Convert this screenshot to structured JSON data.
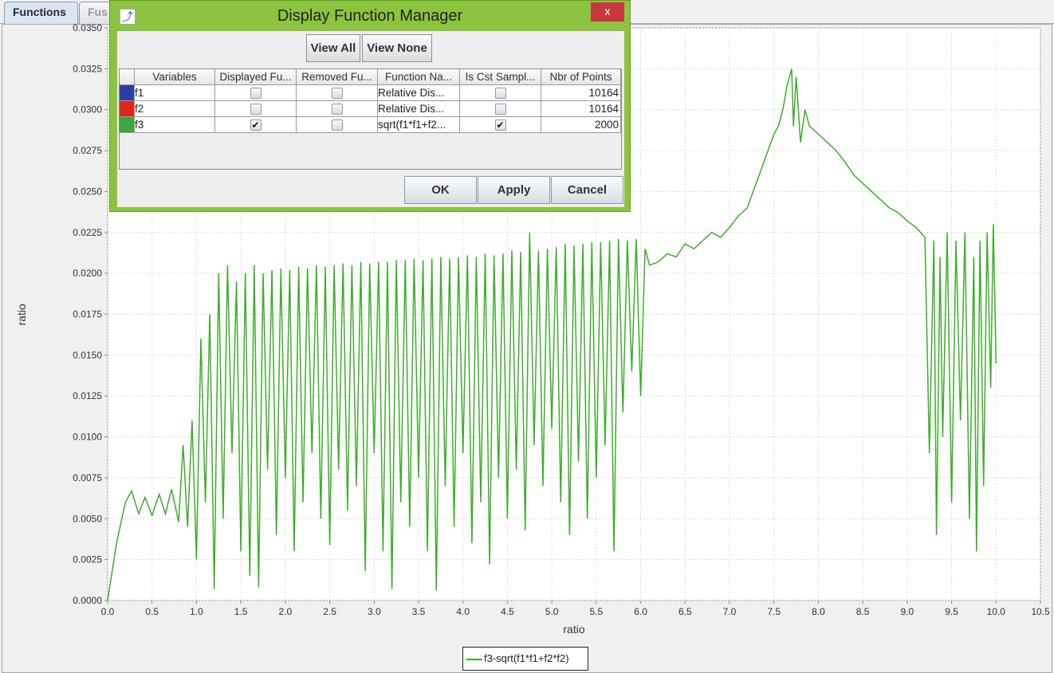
{
  "tabs": [
    {
      "label": "Functions",
      "active": true
    },
    {
      "label": "Fus",
      "active": false
    }
  ],
  "dialog": {
    "title": "Display Function Manager",
    "close_label": "x",
    "view_all_label": "View All",
    "view_none_label": "View None",
    "columns": [
      "",
      "Variables",
      "Displayed Fu...",
      "Removed Fu...",
      "Function Na...",
      "Is Cst Sampl...",
      "Nbr of Points"
    ],
    "rows": [
      {
        "color": "#2b3f9e",
        "variable": "f1",
        "displayed": false,
        "removed": false,
        "function": "Relative Dis...",
        "cst_sampling": false,
        "points": "10164"
      },
      {
        "color": "#e02323",
        "variable": "f2",
        "displayed": false,
        "removed": false,
        "function": "Relative Dis...",
        "cst_sampling": false,
        "points": "10164"
      },
      {
        "color": "#3aa83a",
        "variable": "f3",
        "displayed": true,
        "removed": false,
        "function": "sqrt(f1*f1+f2...",
        "cst_sampling": true,
        "points": "2000"
      }
    ],
    "ok_label": "OK",
    "apply_label": "Apply",
    "cancel_label": "Cancel"
  },
  "chart_data": {
    "type": "line",
    "xlabel": "ratio",
    "ylabel": "ratio",
    "xlim": [
      0,
      10.5
    ],
    "ylim": [
      0,
      0.035
    ],
    "xticks": [
      "0.0",
      "0.5",
      "1.0",
      "1.5",
      "2.0",
      "2.5",
      "3.0",
      "3.5",
      "4.0",
      "4.5",
      "5.0",
      "5.5",
      "6.0",
      "6.5",
      "7.0",
      "7.5",
      "8.0",
      "8.5",
      "9.0",
      "9.5",
      "10.0",
      "10.5"
    ],
    "yticks": [
      "0.0000",
      "0.0025",
      "0.0050",
      "0.0075",
      "0.0100",
      "0.0125",
      "0.0150",
      "0.0175",
      "0.0200",
      "0.0225",
      "0.0250",
      "0.0275",
      "0.0300",
      "0.0325",
      "0.0350"
    ],
    "grid": true,
    "legend_position": "bottom",
    "series": [
      {
        "name": "f3-sqrt(f1*f1+f2*f2)",
        "color": "#3dae2b",
        "x": [
          0,
          0.1,
          0.2,
          0.27,
          0.35,
          0.42,
          0.5,
          0.58,
          0.65,
          0.72,
          0.8,
          0.85,
          0.9,
          0.95,
          1.0,
          1.05,
          1.1,
          1.15,
          1.2,
          1.25,
          1.3,
          1.35,
          1.4,
          1.45,
          1.5,
          1.55,
          1.6,
          1.65,
          1.7,
          1.75,
          1.8,
          1.85,
          1.9,
          1.95,
          2.0,
          2.05,
          2.1,
          2.15,
          2.2,
          2.25,
          2.3,
          2.35,
          2.4,
          2.45,
          2.5,
          2.55,
          2.6,
          2.65,
          2.7,
          2.75,
          2.8,
          2.85,
          2.9,
          2.95,
          3.0,
          3.05,
          3.1,
          3.15,
          3.2,
          3.25,
          3.3,
          3.35,
          3.4,
          3.45,
          3.5,
          3.55,
          3.6,
          3.65,
          3.7,
          3.75,
          3.8,
          3.85,
          3.9,
          3.95,
          4.0,
          4.05,
          4.1,
          4.15,
          4.2,
          4.25,
          4.3,
          4.35,
          4.4,
          4.45,
          4.5,
          4.55,
          4.6,
          4.65,
          4.7,
          4.75,
          4.8,
          4.85,
          4.9,
          4.95,
          5.0,
          5.05,
          5.1,
          5.15,
          5.2,
          5.25,
          5.3,
          5.35,
          5.4,
          5.45,
          5.5,
          5.55,
          5.6,
          5.65,
          5.7,
          5.75,
          5.8,
          5.85,
          5.9,
          5.95,
          6.0,
          6.05,
          6.1,
          6.2,
          6.3,
          6.4,
          6.5,
          6.6,
          6.7,
          6.8,
          6.9,
          7.0,
          7.1,
          7.2,
          7.3,
          7.4,
          7.5,
          7.55,
          7.6,
          7.65,
          7.7,
          7.72,
          7.75,
          7.8,
          7.85,
          7.9,
          8.0,
          8.1,
          8.2,
          8.3,
          8.4,
          8.5,
          8.6,
          8.7,
          8.8,
          8.9,
          9.0,
          9.1,
          9.2,
          9.25,
          9.3,
          9.33,
          9.37,
          9.4,
          9.45,
          9.5,
          9.55,
          9.6,
          9.65,
          9.7,
          9.75,
          9.78,
          9.82,
          9.86,
          9.9,
          9.94,
          9.97,
          10.0
        ],
        "y": [
          0,
          0.0035,
          0.006,
          0.0067,
          0.0053,
          0.0063,
          0.0052,
          0.0065,
          0.0053,
          0.0068,
          0.0048,
          0.0095,
          0.0045,
          0.011,
          0.0025,
          0.016,
          0.006,
          0.0175,
          0.0007,
          0.02,
          0.005,
          0.0205,
          0.009,
          0.0195,
          0.003,
          0.02,
          0.0015,
          0.0205,
          0.0008,
          0.02,
          0.008,
          0.0202,
          0.004,
          0.0203,
          0.0075,
          0.0202,
          0.003,
          0.0204,
          0.006,
          0.0203,
          0.009,
          0.0205,
          0.005,
          0.0204,
          0.0034,
          0.0205,
          0.008,
          0.0206,
          0.0055,
          0.0205,
          0.007,
          0.0207,
          0.0018,
          0.0206,
          0.009,
          0.0207,
          0.003,
          0.0207,
          0.0007,
          0.0208,
          0.006,
          0.0208,
          0.0045,
          0.0209,
          0.0075,
          0.0208,
          0.003,
          0.0209,
          0.0006,
          0.021,
          0.007,
          0.0209,
          0.0045,
          0.021,
          0.009,
          0.0211,
          0.0035,
          0.021,
          0.006,
          0.0212,
          0.0022,
          0.0211,
          0.0075,
          0.0212,
          0.005,
          0.0214,
          0.008,
          0.0213,
          0.0043,
          0.0225,
          0.0095,
          0.0214,
          0.007,
          0.0215,
          0.0105,
          0.0216,
          0.006,
          0.0218,
          0.004,
          0.0217,
          0.0085,
          0.0218,
          0.005,
          0.0219,
          0.0075,
          0.0219,
          0.0095,
          0.022,
          0.003,
          0.0221,
          0.0115,
          0.022,
          0.014,
          0.0221,
          0.0125,
          0.0215,
          0.0205,
          0.0207,
          0.0212,
          0.021,
          0.0218,
          0.0215,
          0.022,
          0.0225,
          0.0222,
          0.0228,
          0.0235,
          0.024,
          0.0255,
          0.027,
          0.0285,
          0.029,
          0.03,
          0.0315,
          0.0325,
          0.029,
          0.032,
          0.028,
          0.03,
          0.029,
          0.0285,
          0.028,
          0.0275,
          0.0268,
          0.026,
          0.0255,
          0.025,
          0.0245,
          0.024,
          0.0237,
          0.0232,
          0.0228,
          0.0222,
          0.009,
          0.022,
          0.004,
          0.021,
          0.01,
          0.0225,
          0.006,
          0.022,
          0.011,
          0.0225,
          0.005,
          0.021,
          0.003,
          0.022,
          0.007,
          0.0225,
          0.013,
          0.023,
          0.0145
        ]
      }
    ]
  }
}
